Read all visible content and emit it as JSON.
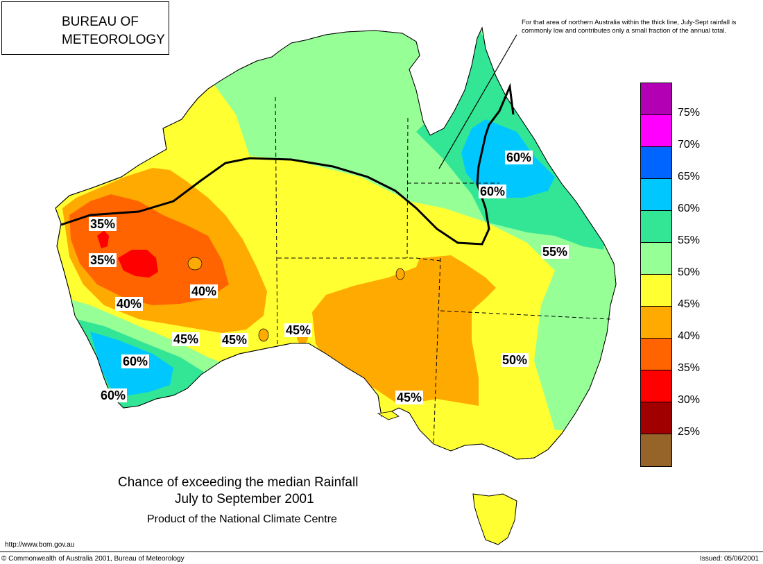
{
  "header": {
    "org_line1": "BUREAU OF",
    "org_line2": "METEOROLOGY",
    "note": "For that area of northern Australia within the thick line, July-Sept rainfall is commonly low and contributes only a small fraction of the annual total."
  },
  "map": {
    "region": "Australia",
    "zone_labels": [
      "35%",
      "35%",
      "40%",
      "40%",
      "45%",
      "45%",
      "45%",
      "45%",
      "50%",
      "55%",
      "60%",
      "60%",
      "60%",
      "60%"
    ]
  },
  "legend": {
    "ticks": [
      "75%",
      "70%",
      "65%",
      "60%",
      "55%",
      "50%",
      "45%",
      "40%",
      "35%",
      "30%",
      "25%"
    ],
    "colors": [
      "#b400b4",
      "#ff00ff",
      "#0064ff",
      "#00c8ff",
      "#32e696",
      "#96ff96",
      "#ffff32",
      "#ffaa00",
      "#ff6400",
      "#ff0000",
      "#a00000",
      "#966428"
    ]
  },
  "title": {
    "line1": "Chance of exceeding the median Rainfall",
    "line2": "July to September 2001",
    "line3": "Product of the National Climate Centre"
  },
  "footer": {
    "url": "http://www.bom.gov.au",
    "copyright": "© Commonwealth of Australia 2001, Bureau of Meteorology",
    "issued": "Issued: 05/06/2001"
  }
}
